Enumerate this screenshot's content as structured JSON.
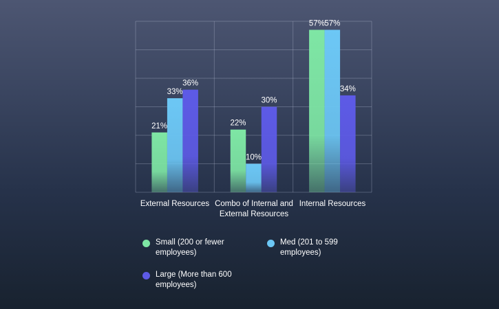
{
  "chart_data": {
    "type": "bar",
    "categories": [
      "External Resources",
      "Combo of Internal and External Resources",
      "Internal Resources"
    ],
    "series": [
      {
        "name": "Small (200 or fewer employees)",
        "values": [
          21,
          22,
          57
        ],
        "color": "#7ee6a4"
      },
      {
        "name": "Med (201 to 599 employees)",
        "values": [
          33,
          10,
          57
        ],
        "color": "#6cc7f5"
      },
      {
        "name": "Large (More than 600 employees)",
        "values": [
          36,
          30,
          34
        ],
        "color": "#5d5ae6"
      }
    ],
    "value_suffix": "%",
    "ylim": [
      0,
      60
    ],
    "grid": true,
    "legend_position": "bottom",
    "title": "",
    "xlabel": "",
    "ylabel": ""
  }
}
